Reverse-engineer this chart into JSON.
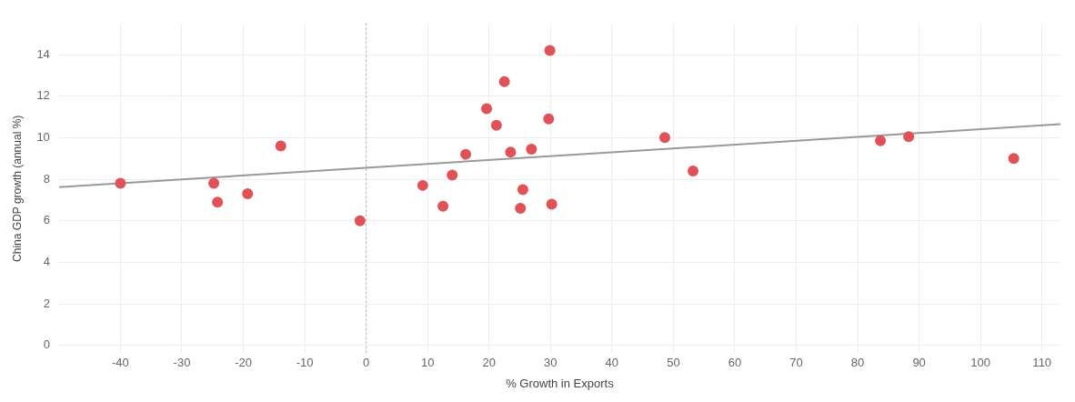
{
  "chart_data": {
    "type": "scatter",
    "xlabel": "% Growth in Exports",
    "ylabel": "China GDP growth (annual %)",
    "x": [
      -40,
      -24.8,
      -24.2,
      -19.3,
      -13.9,
      -1,
      9.2,
      12.5,
      14,
      16.2,
      19.6,
      21.2,
      22.5,
      23.5,
      26.9,
      25.5,
      25.1,
      29.7,
      29.9,
      30.2,
      48.6,
      53.2,
      83.7,
      88.3,
      105.4
    ],
    "series": [
      {
        "color": "#e05257",
        "values": [
          7.8,
          7.8,
          6.9,
          7.3,
          9.6,
          6.0,
          7.7,
          6.7,
          8.2,
          9.2,
          11.4,
          10.6,
          12.7,
          9.3,
          9.45,
          7.5,
          6.6,
          10.9,
          14.2,
          6.8,
          10.0,
          8.4,
          9.85,
          10.05,
          9.0
        ]
      },
      {
        "type": "line",
        "color": "#999999",
        "x": [
          -50,
          113
        ],
        "values": [
          7.62,
          10.65
        ],
        "marker": "none"
      }
    ],
    "marker": "circle",
    "xlim": [
      -50,
      113
    ],
    "xticks": [
      -40,
      -30,
      -20,
      -10,
      0,
      10,
      20,
      30,
      40,
      50,
      60,
      70,
      80,
      90,
      100,
      110
    ],
    "ylim": [
      -0.4,
      15.5
    ],
    "yticks": [
      0,
      2,
      4,
      6,
      8,
      10,
      12,
      14
    ],
    "grid": true,
    "ref_lines": [
      {
        "axis": "x",
        "value": 0,
        "line_style": "dotted",
        "color": "#aaaaaa"
      }
    ]
  }
}
